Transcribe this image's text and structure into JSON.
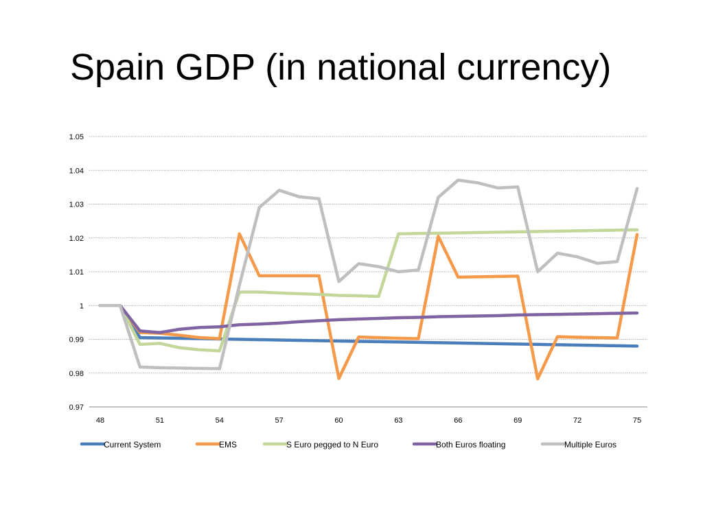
{
  "slide": {
    "title": "Spain GDP (in national currency)"
  },
  "chart_data": {
    "type": "line",
    "title": "",
    "xlabel": "",
    "ylabel": "",
    "x": [
      48,
      49,
      50,
      51,
      52,
      53,
      54,
      55,
      56,
      57,
      58,
      59,
      60,
      61,
      62,
      63,
      64,
      65,
      66,
      67,
      68,
      69,
      70,
      71,
      72,
      73,
      74,
      75
    ],
    "xticks": [
      "48",
      "51",
      "54",
      "57",
      "60",
      "63",
      "66",
      "69",
      "72",
      "75"
    ],
    "yticks": [
      "0.97",
      "0.98",
      "0.99",
      "1",
      "1.01",
      "1.02",
      "1.03",
      "1.04",
      "1.05"
    ],
    "ylim": [
      0.97,
      1.05
    ],
    "grid": true,
    "legend_position": "bottom",
    "series": [
      {
        "name": "Current System",
        "color": "#4a7ebb",
        "values": [
          1.0,
          1.0,
          0.9905,
          0.9904,
          0.9903,
          0.9902,
          0.9901,
          0.99,
          0.9899,
          0.9898,
          0.9897,
          0.9896,
          0.9895,
          0.9894,
          0.9893,
          0.9892,
          0.9891,
          0.989,
          0.9889,
          0.9888,
          0.9887,
          0.9886,
          0.9885,
          0.9884,
          0.9883,
          0.9882,
          0.9881,
          0.988
        ]
      },
      {
        "name": "EMS",
        "color": "#f59a4a",
        "values": [
          1.0,
          1.0,
          0.992,
          0.9918,
          0.9912,
          0.9905,
          0.9902,
          1.0212,
          1.0088,
          1.0088,
          1.0088,
          1.0088,
          0.9784,
          0.9907,
          0.9905,
          0.9903,
          0.9902,
          1.0205,
          1.0084,
          1.0085,
          1.0086,
          1.0087,
          0.9783,
          0.9908,
          0.9906,
          0.9905,
          0.9904,
          1.021
        ]
      },
      {
        "name": "S Euro pegged to N Euro",
        "color": "#c4d79b",
        "values": [
          1.0,
          1.0,
          0.9885,
          0.9888,
          0.9875,
          0.9869,
          0.9866,
          1.004,
          1.004,
          1.0037,
          1.0035,
          1.0033,
          1.003,
          1.0029,
          1.0027,
          1.0212,
          1.0213,
          1.0214,
          1.0215,
          1.0216,
          1.0217,
          1.0218,
          1.0219,
          1.022,
          1.0221,
          1.0222,
          1.0223,
          1.0224
        ]
      },
      {
        "name": "Both Euros floating",
        "color": "#8064a2",
        "values": [
          1.0,
          1.0,
          0.9925,
          0.992,
          0.993,
          0.9935,
          0.9937,
          0.9943,
          0.9945,
          0.9948,
          0.9952,
          0.9955,
          0.9958,
          0.996,
          0.9962,
          0.9964,
          0.9965,
          0.9967,
          0.9968,
          0.9969,
          0.997,
          0.9972,
          0.9973,
          0.9974,
          0.9975,
          0.9976,
          0.9977,
          0.9978
        ]
      },
      {
        "name": "Multiple Euros",
        "color": "#bfbfbf",
        "values": [
          1.0,
          1.0,
          0.9818,
          0.9816,
          0.9815,
          0.9814,
          0.9813,
          1.006,
          1.029,
          1.0341,
          1.0322,
          1.0316,
          1.0071,
          1.0124,
          1.0115,
          1.01,
          1.0105,
          1.032,
          1.0371,
          1.0363,
          1.0348,
          1.0351,
          1.01,
          1.0155,
          1.0144,
          1.0125,
          1.013,
          1.0346
        ]
      }
    ]
  }
}
